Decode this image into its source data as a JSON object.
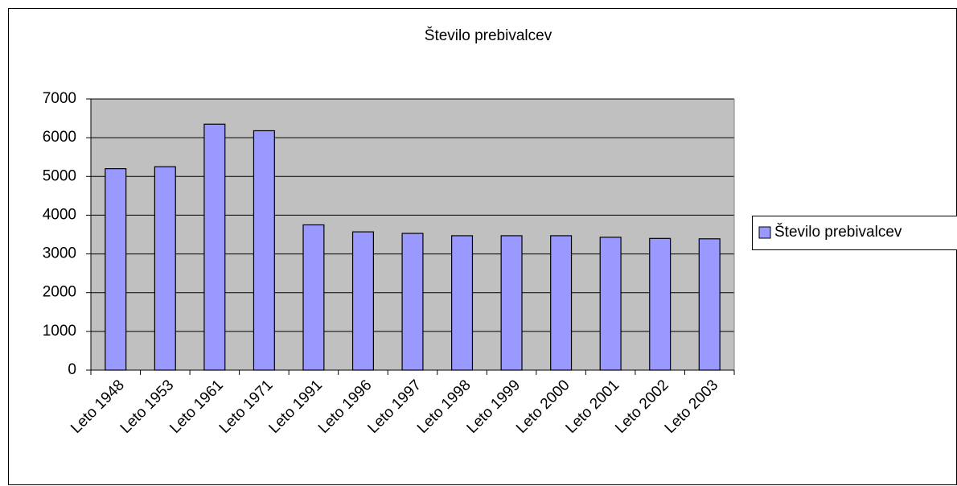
{
  "chart_data": {
    "type": "bar",
    "title": "Število prebivalcev",
    "categories": [
      "Leto 1948",
      "Leto 1953",
      "Leto 1961",
      "Leto 1971",
      "Leto 1991",
      "Leto 1996",
      "Leto 1997",
      "Leto 1998",
      "Leto 1999",
      "Leto 2000",
      "Leto 2001",
      "Leto 2002",
      "Leto 2003"
    ],
    "series": [
      {
        "name": "Število prebivalcev",
        "color": "#9999ff",
        "values": [
          5200,
          5250,
          6350,
          6180,
          3750,
          3570,
          3530,
          3470,
          3470,
          3470,
          3430,
          3400,
          3390
        ]
      }
    ],
    "ylim": [
      0,
      7000
    ],
    "yticks": [
      0,
      1000,
      2000,
      3000,
      4000,
      5000,
      6000,
      7000
    ],
    "grid": true,
    "legend": "right"
  }
}
